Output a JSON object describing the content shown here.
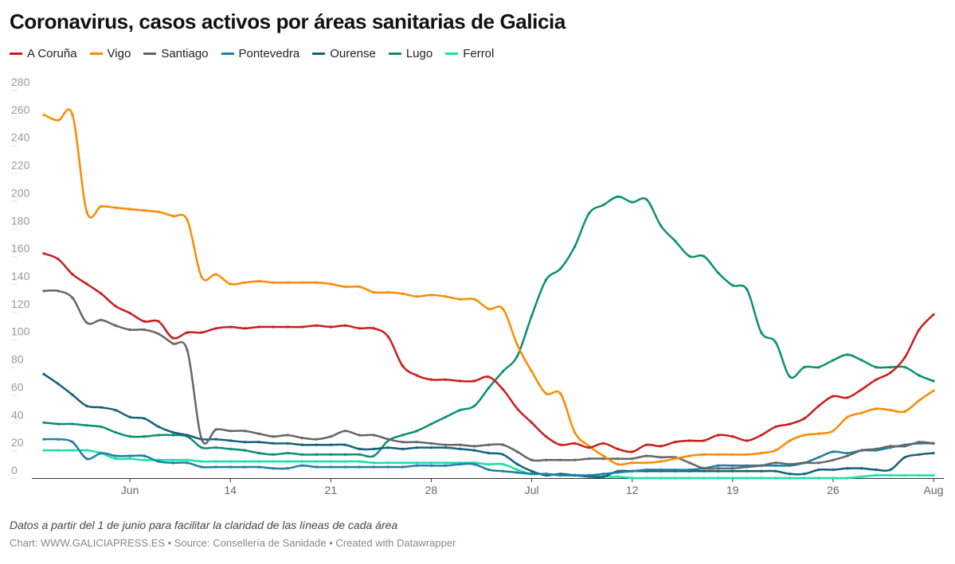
{
  "title": "Coronavirus, casos activos por áreas sanitarias de Galicia",
  "notes": "Datos a partir del 1 de junio para facilitar la claridad de las líneas de cada área",
  "byline": "Chart: WWW.GALICIAPRESS.ES • Source: Consellería de Sanidade • Created with Datawrapper",
  "chart_data": {
    "type": "line",
    "title": "Coronavirus, casos activos por áreas sanitarias de Galicia",
    "xlabel": "",
    "ylabel": "",
    "ylim": [
      0,
      280
    ],
    "yticks": [
      0,
      20,
      40,
      60,
      80,
      100,
      120,
      140,
      160,
      180,
      200,
      220,
      240,
      260,
      280
    ],
    "grid": false,
    "legend": "top-left",
    "xticks": [
      {
        "date": "7 Jun",
        "label": "Jun"
      },
      {
        "date": "14 Jun",
        "label": "14"
      },
      {
        "date": "21 Jun",
        "label": "21"
      },
      {
        "date": "28 Jun",
        "label": "28"
      },
      {
        "date": "5 Jul",
        "label": "Jul"
      },
      {
        "date": "12 Jul",
        "label": "12"
      },
      {
        "date": "19 Jul",
        "label": "19"
      },
      {
        "date": "26 Jul",
        "label": "26"
      },
      {
        "date": "2 Aug",
        "label": "Aug"
      }
    ],
    "x": [
      "1 Jun",
      "2 Jun",
      "3 Jun",
      "4 Jun",
      "5 Jun",
      "6 Jun",
      "7 Jun",
      "8 Jun",
      "9 Jun",
      "10 Jun",
      "11 Jun",
      "12 Jun",
      "13 Jun",
      "14 Jun",
      "15 Jun",
      "16 Jun",
      "17 Jun",
      "18 Jun",
      "19 Jun",
      "20 Jun",
      "21 Jun",
      "22 Jun",
      "23 Jun",
      "24 Jun",
      "25 Jun",
      "26 Jun",
      "27 Jun",
      "28 Jun",
      "29 Jun",
      "30 Jun",
      "1 Jul",
      "2 Jul",
      "3 Jul",
      "4 Jul",
      "5 Jul",
      "6 Jul",
      "7 Jul",
      "8 Jul",
      "9 Jul",
      "10 Jul",
      "11 Jul",
      "12 Jul",
      "13 Jul",
      "14 Jul",
      "15 Jul",
      "16 Jul",
      "17 Jul",
      "18 Jul",
      "19 Jul",
      "20 Jul",
      "21 Jul",
      "22 Jul",
      "23 Jul",
      "24 Jul",
      "25 Jul",
      "26 Jul",
      "27 Jul",
      "28 Jul",
      "29 Jul",
      "30 Jul",
      "31 Jul",
      "1 Aug",
      "2 Aug"
    ],
    "series": [
      {
        "name": "A Coruña",
        "color": "#c71e1d",
        "values": [
          162,
          158,
          147,
          140,
          133,
          124,
          119,
          113,
          113,
          101,
          105,
          105,
          108,
          109,
          108,
          109,
          109,
          109,
          109,
          110,
          109,
          110,
          108,
          108,
          102,
          81,
          74,
          71,
          71,
          70,
          70,
          73,
          64,
          50,
          40,
          30,
          24,
          25,
          22,
          25,
          21,
          19,
          24,
          23,
          26,
          27,
          27,
          31,
          30,
          27,
          31,
          37,
          39,
          43,
          52,
          59,
          58,
          64,
          71,
          76,
          87,
          107,
          118
        ]
      },
      {
        "name": "Vigo",
        "color": "#fa8c00",
        "values": [
          262,
          258,
          262,
          192,
          196,
          195,
          194,
          193,
          192,
          189,
          186,
          145,
          147,
          140,
          141,
          142,
          141,
          141,
          141,
          141,
          140,
          138,
          138,
          134,
          134,
          133,
          131,
          132,
          131,
          129,
          129,
          122,
          122,
          96,
          77,
          61,
          61,
          33,
          23,
          16,
          10,
          11,
          11,
          12,
          14,
          16,
          17,
          17,
          17,
          17,
          18,
          20,
          27,
          31,
          32,
          34,
          44,
          47,
          50,
          49,
          48,
          56,
          63
        ]
      },
      {
        "name": "Santiago",
        "color": "#666666",
        "values": [
          135,
          135,
          130,
          112,
          114,
          110,
          107,
          107,
          104,
          97,
          92,
          28,
          35,
          34,
          34,
          32,
          30,
          31,
          29,
          28,
          30,
          34,
          31,
          31,
          28,
          26,
          26,
          25,
          24,
          24,
          23,
          24,
          24,
          19,
          13,
          13,
          13,
          13,
          14,
          14,
          14,
          14,
          16,
          15,
          15,
          11,
          7,
          7,
          7,
          8,
          9,
          11,
          10,
          11,
          11,
          13,
          16,
          20,
          21,
          23,
          23,
          26,
          25
        ]
      },
      {
        "name": "Pontevedra",
        "color": "#1d81a2",
        "values": [
          28,
          28,
          26,
          14,
          18,
          16,
          16,
          16,
          12,
          11,
          11,
          8,
          8,
          8,
          8,
          8,
          7,
          7,
          9,
          8,
          8,
          8,
          8,
          8,
          8,
          8,
          9,
          9,
          9,
          10,
          10,
          6,
          5,
          4,
          3,
          3,
          2,
          2,
          2,
          3,
          4,
          5,
          6,
          6,
          6,
          6,
          7,
          9,
          9,
          9,
          9,
          9,
          9,
          11,
          15,
          19,
          18,
          20,
          20,
          22,
          24,
          25,
          25
        ]
      },
      {
        "name": "Ourense",
        "color": "#15607a",
        "values": [
          75,
          68,
          60,
          52,
          51,
          49,
          44,
          43,
          37,
          33,
          31,
          28,
          28,
          27,
          26,
          26,
          25,
          25,
          24,
          24,
          24,
          24,
          21,
          21,
          22,
          21,
          22,
          22,
          22,
          21,
          20,
          18,
          17,
          10,
          5,
          2,
          3,
          2,
          1,
          1,
          5,
          5,
          5,
          5,
          5,
          5,
          5,
          5,
          5,
          5,
          5,
          5,
          3,
          3,
          6,
          6,
          7,
          7,
          6,
          6,
          15,
          17,
          18
        ]
      },
      {
        "name": "Lugo",
        "color": "#0a8f72",
        "values": [
          40,
          39,
          39,
          38,
          37,
          33,
          30,
          30,
          31,
          31,
          30,
          22,
          22,
          21,
          20,
          18,
          17,
          18,
          17,
          17,
          17,
          17,
          17,
          16,
          27,
          31,
          34,
          39,
          44,
          49,
          52,
          65,
          77,
          88,
          117,
          143,
          151,
          167,
          191,
          197,
          203,
          199,
          201,
          182,
          171,
          160,
          160,
          148,
          139,
          136,
          105,
          98,
          73,
          80,
          80,
          85,
          89,
          85,
          80,
          80,
          80,
          74,
          70
        ]
      },
      {
        "name": "Ferrol",
        "color": "#18e0a8",
        "values": [
          20,
          20,
          20,
          20,
          18,
          14,
          14,
          13,
          13,
          13,
          13,
          12,
          12,
          12,
          12,
          12,
          12,
          12,
          12,
          12,
          12,
          12,
          12,
          11,
          11,
          11,
          11,
          11,
          11,
          11,
          11,
          10,
          10,
          6,
          3,
          3,
          2,
          2,
          2,
          1,
          1,
          0,
          0,
          0,
          0,
          0,
          0,
          0,
          0,
          0,
          0,
          0,
          0,
          0,
          0,
          0,
          0,
          1,
          2,
          2,
          2,
          2,
          2
        ]
      }
    ]
  }
}
